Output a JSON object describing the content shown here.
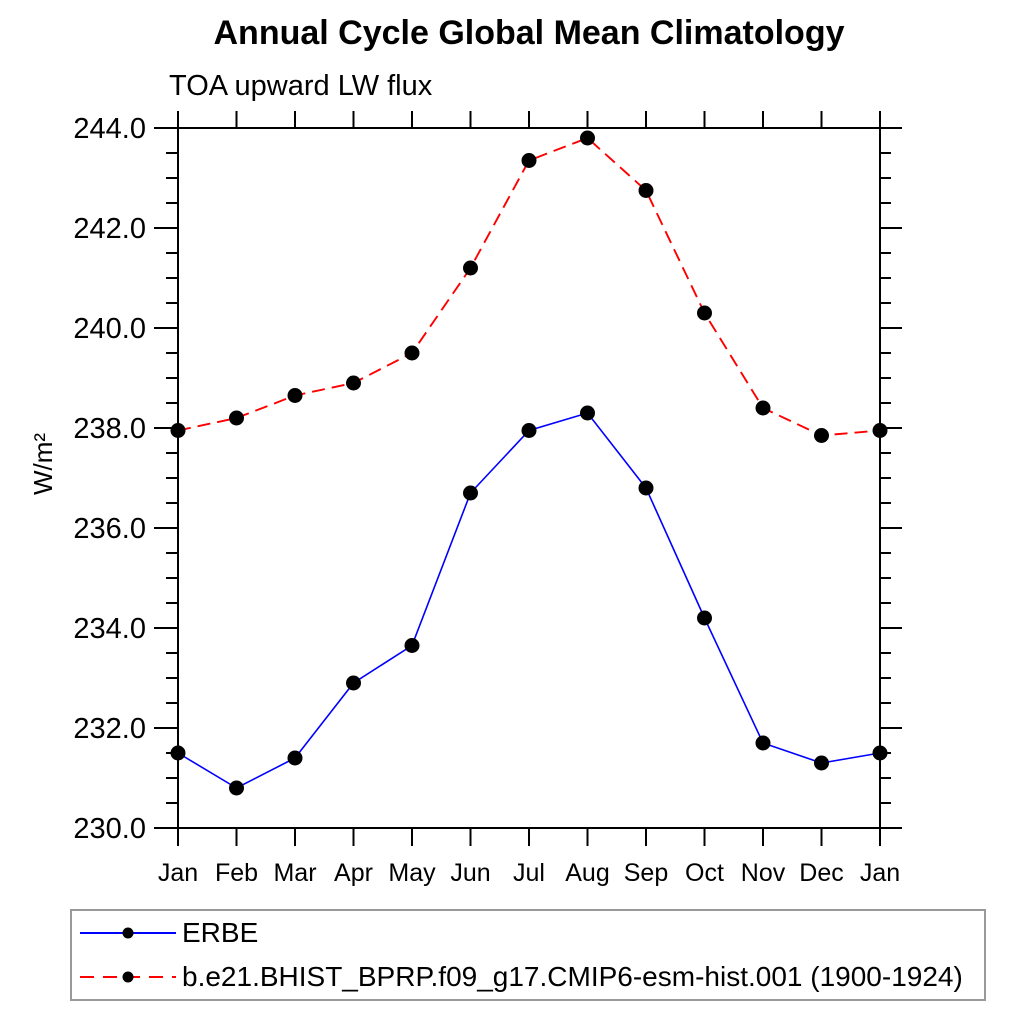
{
  "chart_data": {
    "type": "line",
    "title": "Annual Cycle Global Mean Climatology",
    "subtitle": "TOA upward LW flux",
    "ylabel": "W/m²",
    "xlabel": "",
    "categories": [
      "Jan",
      "Feb",
      "Mar",
      "Apr",
      "May",
      "Jun",
      "Jul",
      "Aug",
      "Sep",
      "Oct",
      "Nov",
      "Dec",
      "Jan"
    ],
    "ylim": [
      230.0,
      244.0
    ],
    "ytick_interval_major": 2.0,
    "ytick_interval_minor": 0.5,
    "ytick_labels": [
      "230.0",
      "232.0",
      "234.0",
      "236.0",
      "238.0",
      "240.0",
      "242.0",
      "244.0"
    ],
    "grid": false,
    "legend_position": "bottom-left-box",
    "axis_color": "#000000",
    "marker_color": "#000000",
    "series": [
      {
        "name": "ERBE",
        "color": "#0000ff",
        "line_style": "solid",
        "marker": "filled-circle",
        "values": [
          231.5,
          230.8,
          231.4,
          232.9,
          233.65,
          236.7,
          237.95,
          238.3,
          236.8,
          234.2,
          231.7,
          231.3,
          231.5
        ]
      },
      {
        "name": "b.e21.BHIST_BPRP.f09_g17.CMIP6-esm-hist.001 (1900-1924)",
        "color": "#ff0000",
        "line_style": "dashed",
        "marker": "filled-circle",
        "values": [
          237.95,
          238.2,
          238.65,
          238.9,
          239.5,
          241.2,
          243.35,
          243.8,
          242.75,
          240.3,
          238.4,
          237.85,
          237.95
        ]
      }
    ]
  }
}
